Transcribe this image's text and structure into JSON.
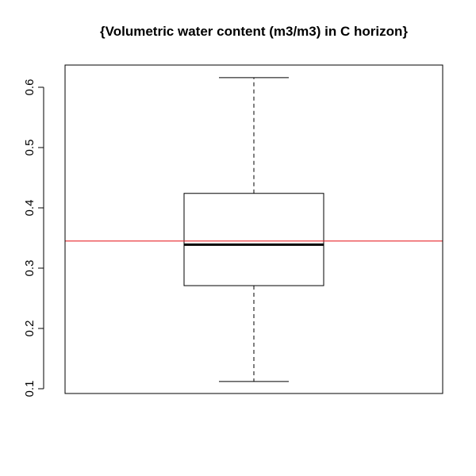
{
  "chart_data": {
    "type": "boxplot",
    "title": "{Volumetric water content (m3/m3) in C horizon}",
    "xlabel": "",
    "ylabel": "",
    "ylim": [
      0.1,
      0.62
    ],
    "yticks": [
      0.1,
      0.2,
      0.3,
      0.4,
      0.5,
      0.6
    ],
    "ytick_labels": [
      "0.1",
      "0.2",
      "0.3",
      "0.4",
      "0.5",
      "0.6"
    ],
    "box": {
      "whisker_low": 0.112,
      "q1": 0.271,
      "median": 0.339,
      "q3": 0.424,
      "whisker_high": 0.616
    },
    "reference_line": {
      "value": 0.345,
      "color": "#e8262b"
    },
    "box_color": "#000000"
  }
}
